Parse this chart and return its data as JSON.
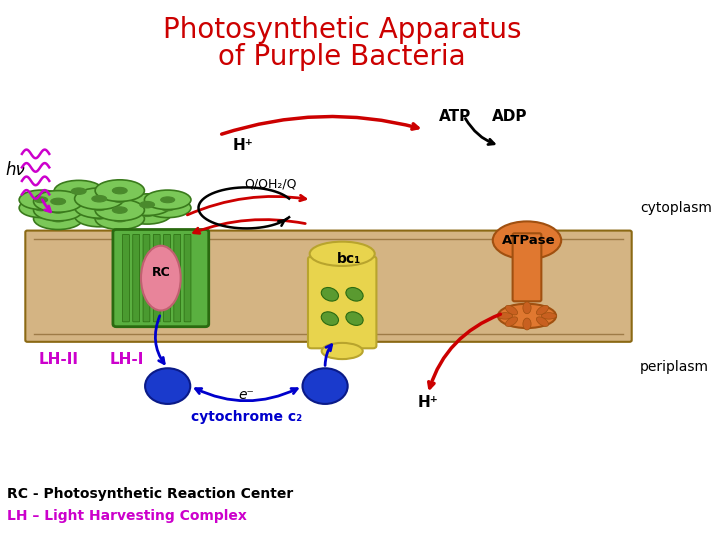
{
  "title_line1": "Photosynthetic Apparatus",
  "title_line2": "of Purple Bacteria",
  "title_color": "#cc0000",
  "title_fontsize": 20,
  "bg_color": "#ffffff",
  "membrane_color": "#d4b483",
  "membrane_edge_color": "#8b6914",
  "cytoplasm_label": "cytoplasm",
  "periplasm_label": "periplasm",
  "rc_label": "RC",
  "lh1_label": "LH-I",
  "lh2_label": "LH-II",
  "bc1_label": "bc₁",
  "atpase_label": "ATPase",
  "atp_label": "ATP",
  "adp_label": "ADP",
  "hv_label": "hν",
  "h_plus_top_label": "H⁺",
  "h_plus_bottom_label": "H⁺",
  "quinone_label": "Q/QH₂/Q",
  "cytc2_label": "cytochrome c₂",
  "e_label": "e⁻",
  "rc_legend": "RC - Photosynthetic Reaction Center",
  "lh_legend": "LH – Light Harvesting Complex",
  "rc_legend_color": "#000000",
  "lh_legend_color": "#cc00cc",
  "legend_fontsize": 10,
  "lh2_color": "#7bc858",
  "lh2_edge_color": "#3a7a1c",
  "lh2_hole_color": "#4a8a2c",
  "lh1_color": "#5ab040",
  "lh1_edge_color": "#2a6a10",
  "rc_color": "#e8849a",
  "rc_edge_color": "#c06070",
  "bc1_color": "#e8d44d",
  "bc1_edge_color": "#b8a42d",
  "bc1_dot_color": "#6ab04c",
  "atp_color": "#e07830",
  "atp_edge_color": "#a05010",
  "cyt_c2_color": "#1a3acc",
  "cyt_c2_edge_color": "#0a1a88",
  "arrow_red": "#cc0000",
  "arrow_blue": "#0000cc",
  "arrow_black": "#000000",
  "magenta": "#cc00cc"
}
